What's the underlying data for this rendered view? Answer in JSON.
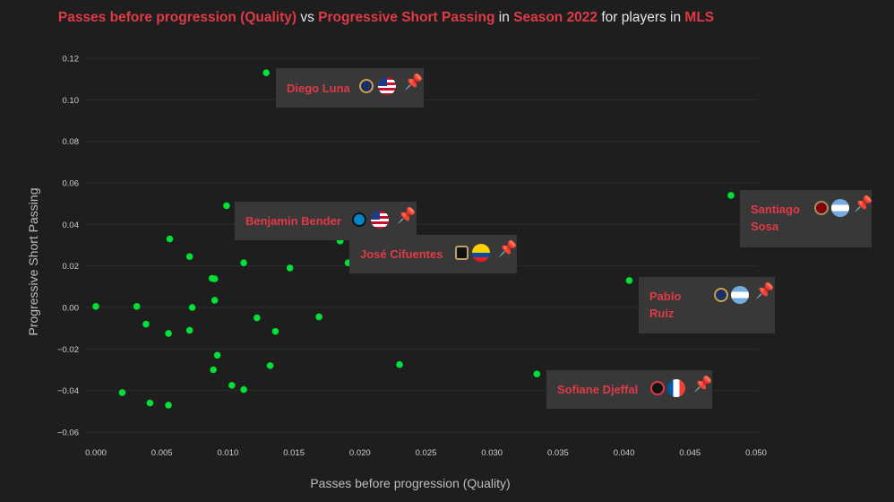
{
  "title": {
    "part1": "Passes before progression (Quality)",
    "part2": " vs ",
    "part3": "Progressive Short Passing",
    "part4": " in ",
    "part5": "Season 2022",
    "part6": " for players in ",
    "part7": "MLS"
  },
  "colors": {
    "accent": "#e03a47",
    "point": "#00e036",
    "pin": "#f28c1b",
    "card": "#383838",
    "background": "#1e1e1e"
  },
  "chart_data": {
    "type": "scatter",
    "xlabel": "Passes before progression (Quality)",
    "ylabel": "Progressive Short Passing",
    "xlim": [
      0.0,
      0.05
    ],
    "ylim": [
      -0.06,
      0.12
    ],
    "x_ticks": [
      "0.000",
      "0.005",
      "0.010",
      "0.015",
      "0.020",
      "0.025",
      "0.030",
      "0.035",
      "0.040",
      "0.045",
      "0.050"
    ],
    "y_ticks": [
      "0.12",
      "0.10",
      "0.08",
      "0.06",
      "0.04",
      "0.02",
      "0.00",
      "−0.02",
      "−0.04",
      "−0.06"
    ],
    "grid": true,
    "points": [
      {
        "x": 0.0129,
        "y": 0.113
      },
      {
        "x": 0.0099,
        "y": 0.049
      },
      {
        "x": 0.0481,
        "y": 0.054
      },
      {
        "x": 0.0404,
        "y": 0.013
      },
      {
        "x": 0.0334,
        "y": -0.032
      },
      {
        "x": 0.0056,
        "y": 0.033
      },
      {
        "x": 0.0071,
        "y": 0.0245
      },
      {
        "x": 0.0112,
        "y": 0.0215
      },
      {
        "x": 0.0147,
        "y": 0.019
      },
      {
        "x": 0.0088,
        "y": 0.014
      },
      {
        "x": 0.009,
        "y": 0.0138
      },
      {
        "x": 0.009,
        "y": 0.0035
      },
      {
        "x": 0.0185,
        "y": 0.032
      },
      {
        "x": 0.0191,
        "y": 0.0215
      },
      {
        "x": 0.0,
        "y": 0.0005
      },
      {
        "x": 0.0031,
        "y": 0.0005
      },
      {
        "x": 0.0073,
        "y": 0.0
      },
      {
        "x": 0.0038,
        "y": -0.008
      },
      {
        "x": 0.0055,
        "y": -0.0125
      },
      {
        "x": 0.0071,
        "y": -0.011
      },
      {
        "x": 0.0122,
        "y": -0.005
      },
      {
        "x": 0.0136,
        "y": -0.0115
      },
      {
        "x": 0.0169,
        "y": -0.0045
      },
      {
        "x": 0.0092,
        "y": -0.023
      },
      {
        "x": 0.0089,
        "y": -0.03
      },
      {
        "x": 0.0132,
        "y": -0.028
      },
      {
        "x": 0.023,
        "y": -0.0275
      },
      {
        "x": 0.0103,
        "y": -0.0375
      },
      {
        "x": 0.0112,
        "y": -0.0395
      },
      {
        "x": 0.002,
        "y": -0.041
      },
      {
        "x": 0.0041,
        "y": -0.046
      },
      {
        "x": 0.0055,
        "y": -0.047
      }
    ],
    "annotations": [
      {
        "name": "Diego Luna",
        "badge": "real-salt-lake-crest-icon",
        "flag": "usa-flag-icon"
      },
      {
        "name": "Benjamin Bender",
        "badge": "charlotte-fc-crest-icon",
        "flag": "usa-flag-icon"
      },
      {
        "name": "José Cifuentes",
        "badge": "lafc-crest-icon",
        "flag": "ecuador-flag-icon"
      },
      {
        "name": "Santiago Sosa",
        "badge": "atlanta-united-crest-icon",
        "flag": "argentina-flag-icon"
      },
      {
        "name": "Pablo Ruiz",
        "badge": "real-salt-lake-crest-icon",
        "flag": "argentina-flag-icon"
      },
      {
        "name": "Sofiane Djeffal",
        "badge": "dc-united-crest-icon",
        "flag": "france-flag-icon"
      }
    ]
  }
}
